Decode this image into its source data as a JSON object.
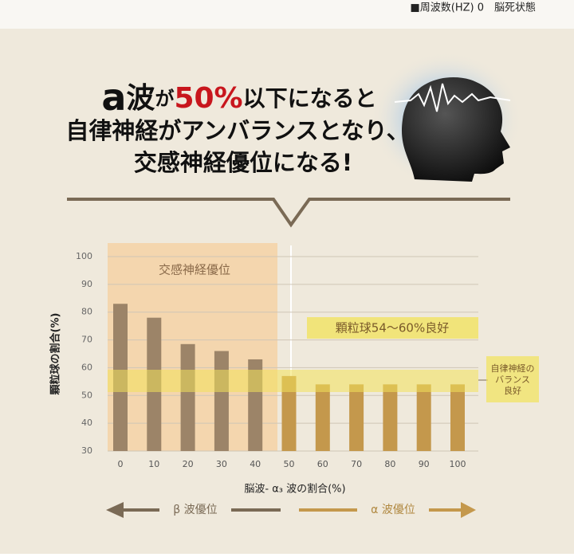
{
  "top_note": "■周波数(HZ) 0　脳死状態",
  "heading": {
    "line1": [
      "a",
      "波",
      "が",
      "50%",
      "以下になると"
    ],
    "line2": "自律神経がアンバランスとなり、",
    "line3": "交感神経優位になる!"
  },
  "chart_data": {
    "type": "bar",
    "categories": [
      "0",
      "10",
      "20",
      "30",
      "40",
      "50",
      "60",
      "70",
      "80",
      "90",
      "100"
    ],
    "values": [
      83,
      78,
      68.5,
      66,
      63,
      57,
      54,
      54,
      54,
      54,
      54
    ],
    "colors": [
      "#9c8468",
      "#9c8468",
      "#9c8468",
      "#9c8468",
      "#9c8468",
      "#c4984c",
      "#c4984c",
      "#c4984c",
      "#c4984c",
      "#c4984c",
      "#c4984c"
    ],
    "ylim": [
      30,
      100
    ],
    "yticks": [
      30,
      40,
      50,
      60,
      70,
      80,
      90,
      100
    ],
    "grid": true,
    "y_label": "顆粒球の割合(%)",
    "x_label": "脳波- α₃ 波の割合(%)",
    "annotations": {
      "sympathetic": "交感神経優位",
      "granulocyte": "顆粒球54〜60%良好",
      "balance": [
        "自律神経の",
        "バランス",
        "良好"
      ]
    },
    "arrows": {
      "left": "β 波優位",
      "right": "α 波優位"
    }
  }
}
